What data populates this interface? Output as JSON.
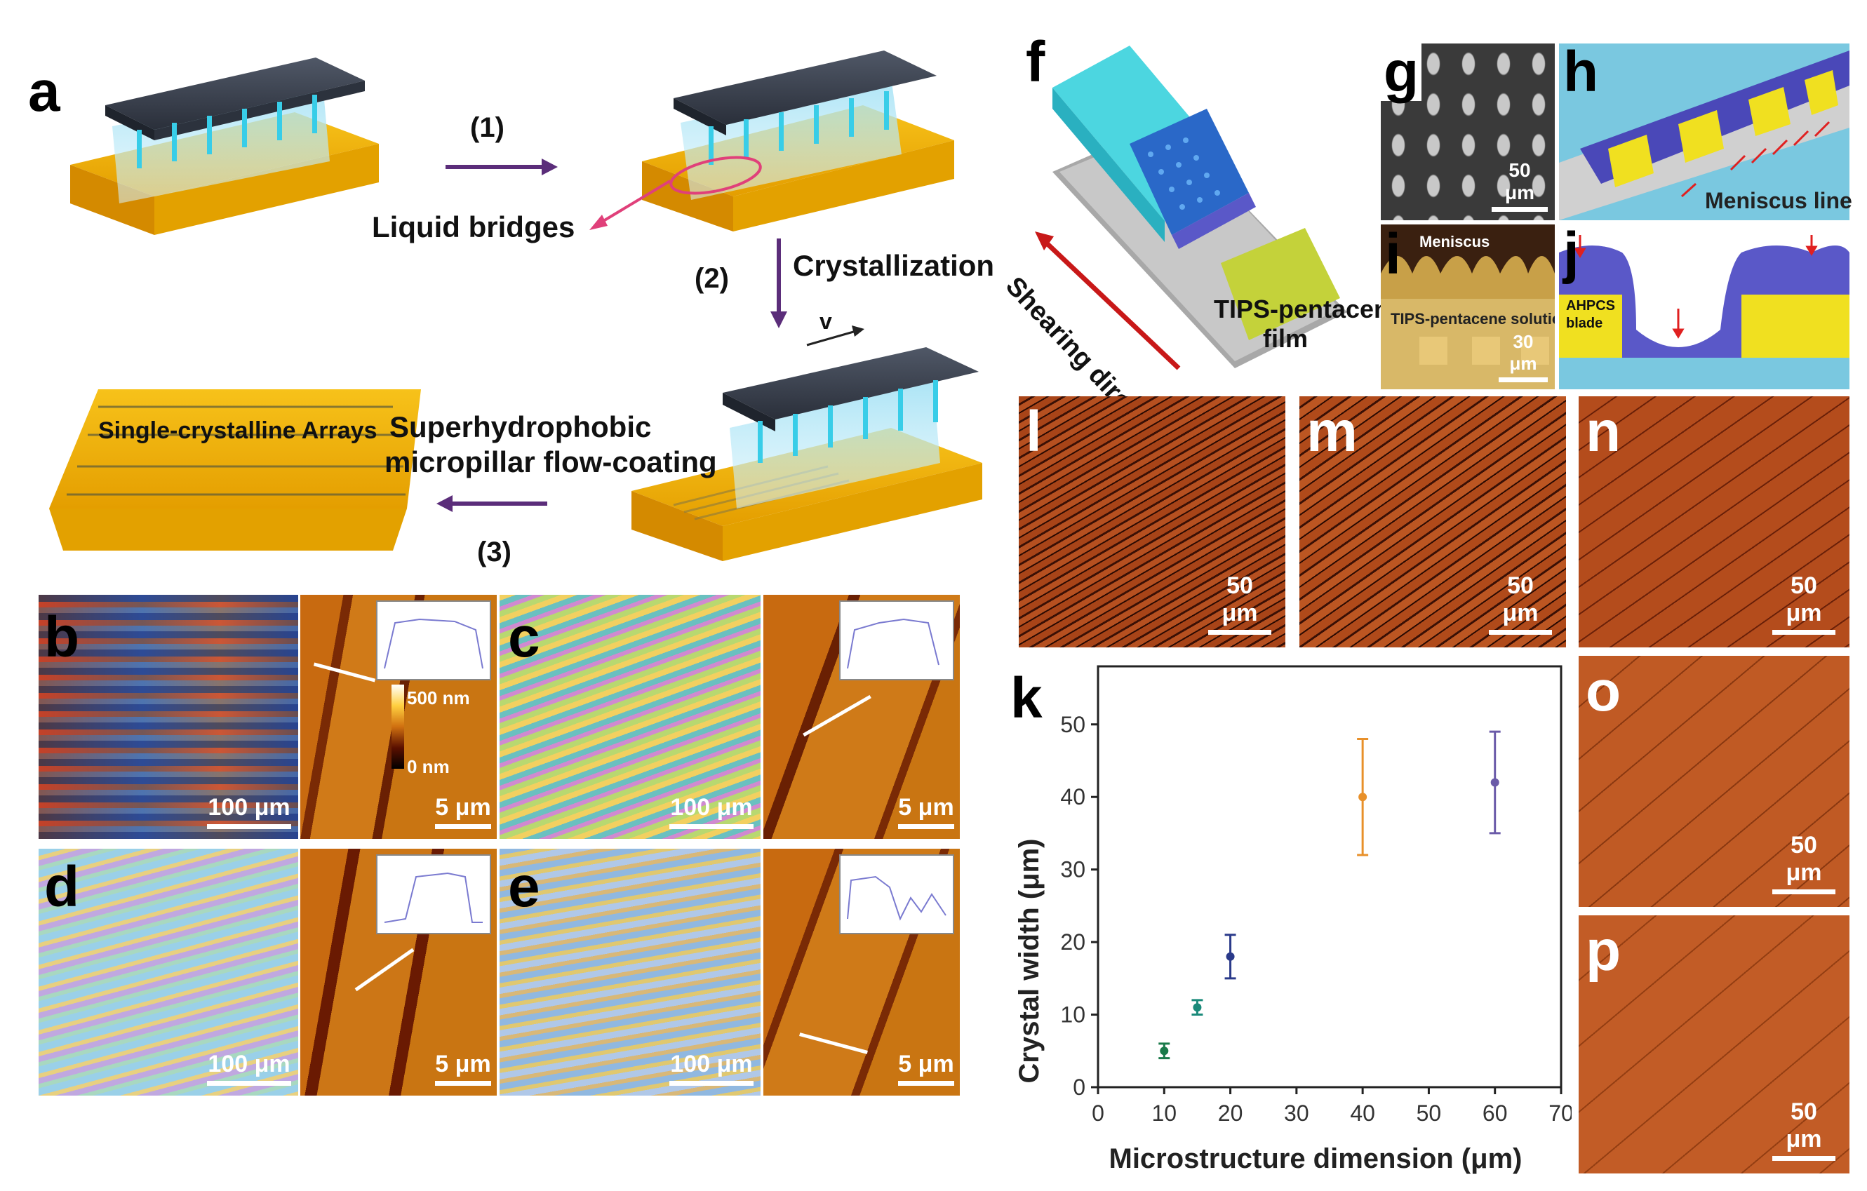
{
  "figure": {
    "panel_a": {
      "label": "a",
      "step1": "(1)",
      "step2": "(2)",
      "step3": "(3)",
      "liquid_bridges": "Liquid bridges",
      "crystallization": "Crystallization",
      "velocity": "v",
      "single_crystalline": "Single-crystalline Arrays",
      "flow_coating_line1": "Superhydrophobic",
      "flow_coating_line2": "micropillar flow-coating"
    },
    "panel_b": {
      "label": "b",
      "scale_optical": "100 μm",
      "scale_afm": "5 μm",
      "colorbar_top": "500 nm",
      "colorbar_bottom": "0 nm"
    },
    "panel_c": {
      "label": "c",
      "scale_optical": "100 μm",
      "scale_afm": "5 μm"
    },
    "panel_d": {
      "label": "d",
      "scale_optical": "100 μm",
      "scale_afm": "5 μm"
    },
    "panel_e": {
      "label": "e",
      "scale_optical": "100 μm",
      "scale_afm": "5 μm"
    },
    "panel_f": {
      "label": "f",
      "shearing": "Shearing direction",
      "film_line1": "TIPS-pentacene",
      "film_line2": "film"
    },
    "panel_g": {
      "label": "g",
      "scale": "50 μm"
    },
    "panel_h": {
      "label": "h",
      "meniscus_line": "Meniscus line"
    },
    "panel_i": {
      "label": "i",
      "meniscus": "Meniscus",
      "solution": "TIPS-pentacene solution",
      "scale": "30 μm"
    },
    "panel_j": {
      "label": "j",
      "blade_line1": "AHPCS",
      "blade_line2": "blade"
    },
    "panel_l": {
      "label": "l",
      "scale": "50 μm"
    },
    "panel_m": {
      "label": "m",
      "scale": "50 μm"
    },
    "panel_n": {
      "label": "n",
      "scale": "50 μm"
    },
    "panel_o": {
      "label": "o",
      "scale": "50 μm"
    },
    "panel_p": {
      "label": "p",
      "scale": "50 μm"
    },
    "panel_k": {
      "label": "k"
    }
  },
  "colors": {
    "substrate": "#f5b800",
    "stamp": "#3a4150",
    "pillar": "#5ec8e6",
    "arrow": "#5b2d7a",
    "pink_arrow": "#e0407a",
    "orange_film": "#b14a1a"
  },
  "chart_data": {
    "type": "scatter",
    "title": "",
    "xlabel": "Microstructure dimension (μm)",
    "ylabel": "Crystal width (μm)",
    "xlim": [
      0,
      70
    ],
    "ylim": [
      0,
      58
    ],
    "xticks": [
      "0",
      "10",
      "20",
      "30",
      "40",
      "50",
      "60",
      "70"
    ],
    "yticks": [
      "0",
      "10",
      "20",
      "30",
      "40",
      "50"
    ],
    "series": [
      {
        "name": "crystal width",
        "points": [
          {
            "x": 10,
            "y": 5,
            "err": 1,
            "color": "#1a7a4a"
          },
          {
            "x": 15,
            "y": 11,
            "err": 1,
            "color": "#1a8a7a"
          },
          {
            "x": 20,
            "y": 18,
            "err": 3,
            "color": "#2a3a8a"
          },
          {
            "x": 40,
            "y": 40,
            "err": 8,
            "color": "#e8902a"
          },
          {
            "x": 60,
            "y": 42,
            "err": 7,
            "color": "#6a5aa8"
          }
        ]
      }
    ]
  }
}
